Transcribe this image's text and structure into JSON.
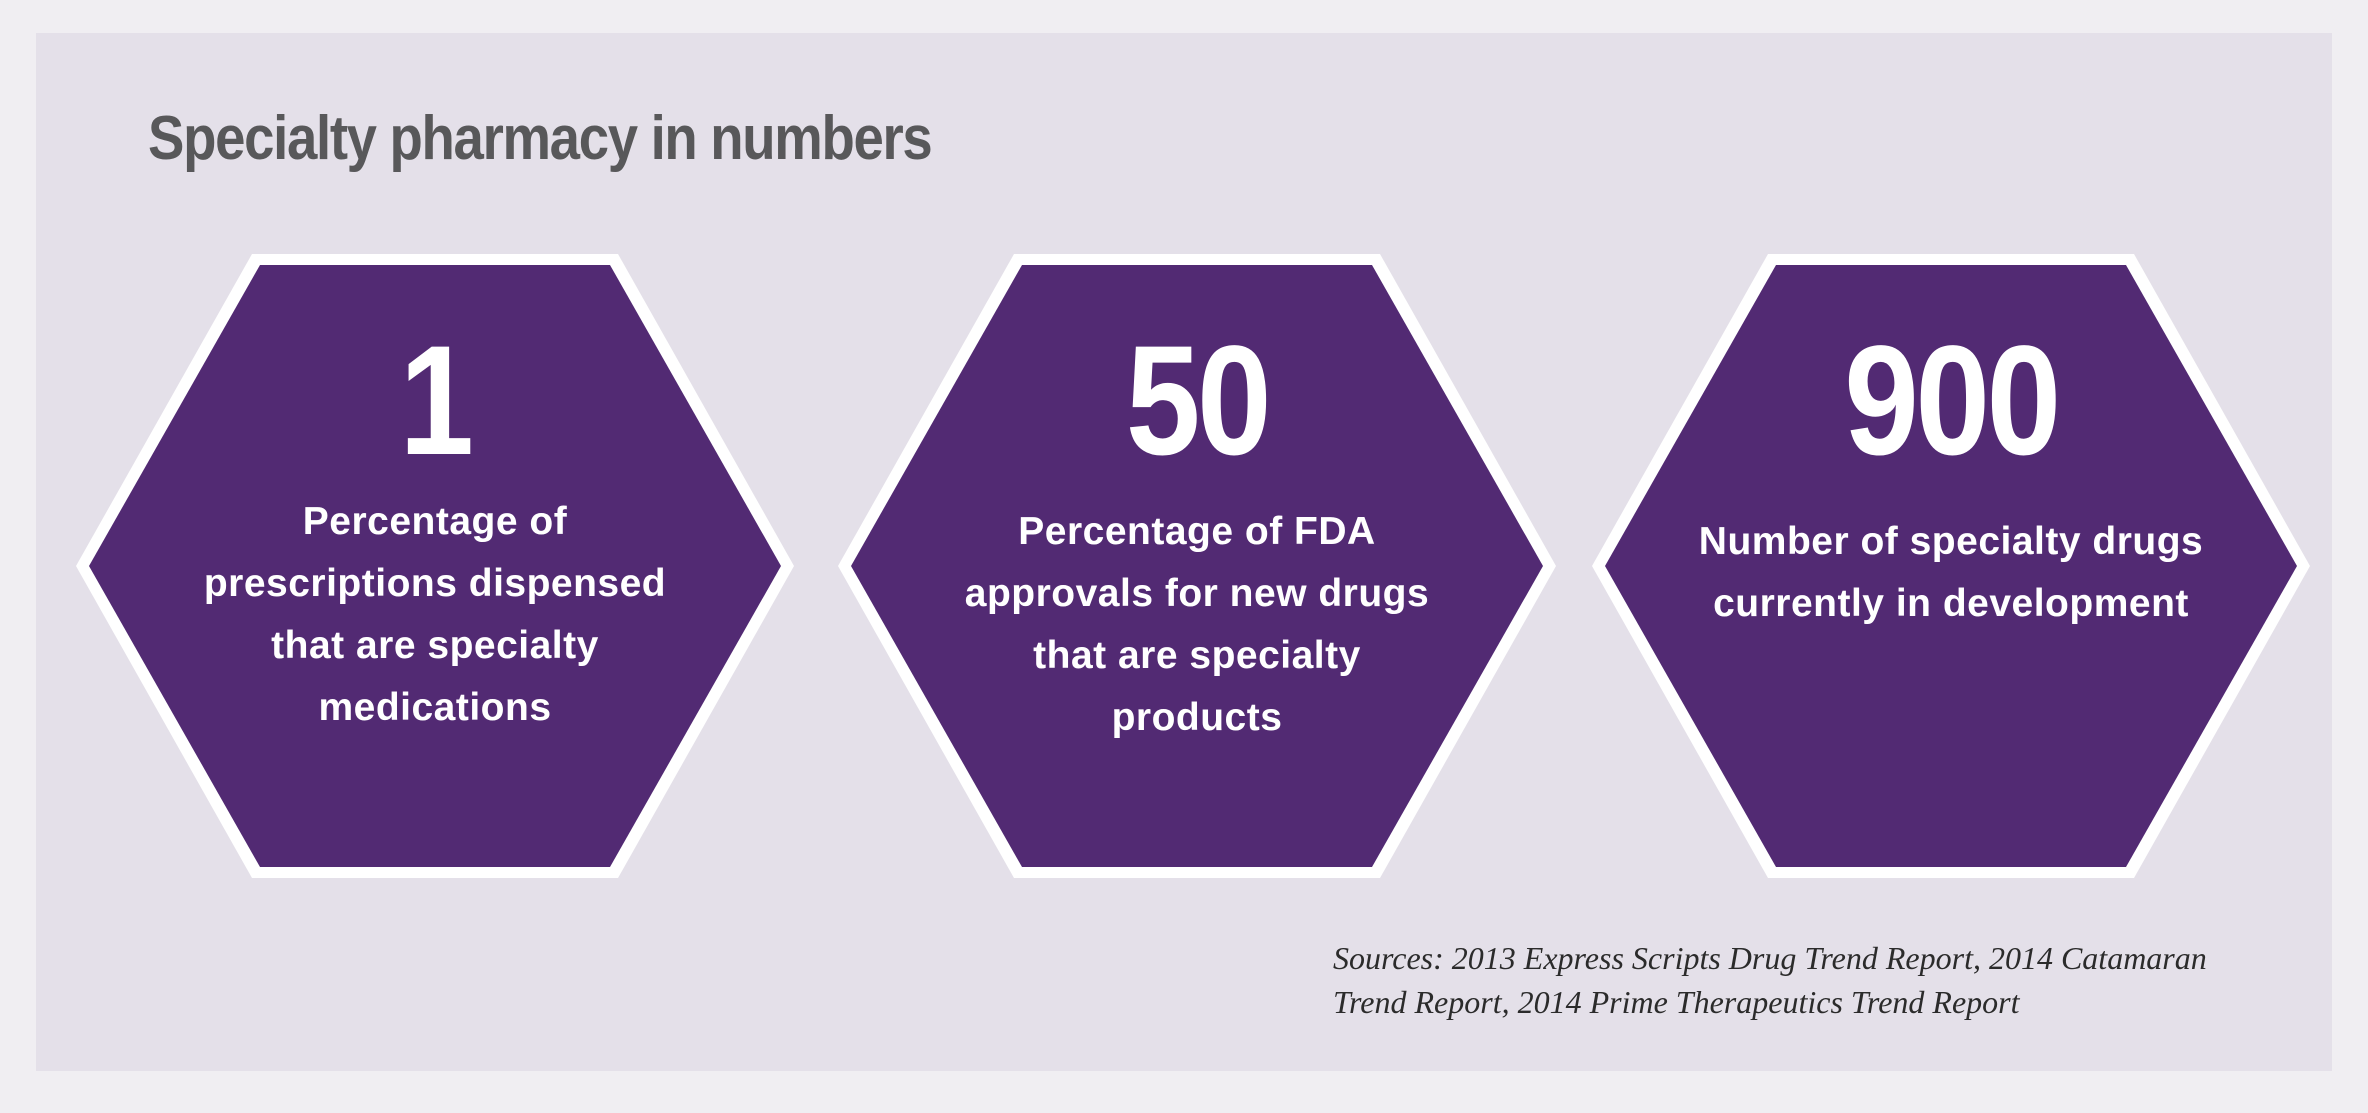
{
  "title": "Specialty pharmacy in numbers",
  "colors": {
    "background": "#e4e0e9",
    "hexagon_fill": "#522a73",
    "hexagon_border": "#ffffff",
    "title_text": "#58585a",
    "hexagon_text": "#ffffff"
  },
  "stats": [
    {
      "number": "1",
      "caption": "Percentage of prescriptions dispensed that are specialty medications"
    },
    {
      "number": "50",
      "caption": "Percentage of FDA approvals for new drugs that are specialty products"
    },
    {
      "number": "900",
      "caption": "Number of specialty drugs currently in development"
    }
  ],
  "sources": "Sources: 2013 Express Scripts Drug Trend Report, 2014 Catamaran Trend Report, 2014 Prime Therapeutics Trend Report"
}
